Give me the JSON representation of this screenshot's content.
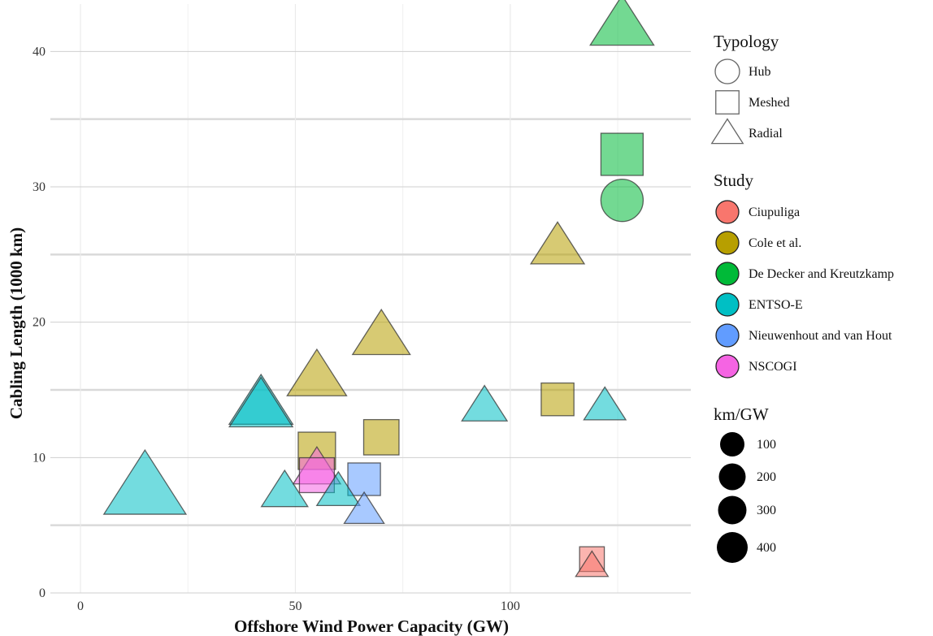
{
  "chart_data": {
    "type": "scatter",
    "xlabel": "Offshore Wind Power Capacity (GW)",
    "ylabel": "Cabling Length (1000 km)",
    "xlim": [
      -7,
      142
    ],
    "ylim": [
      0,
      43.5
    ],
    "x_ticks": [
      "0",
      "50",
      "100"
    ],
    "x_tick_values": [
      0,
      50,
      100
    ],
    "y_ticks": [
      "0",
      "10",
      "20",
      "30",
      "40"
    ],
    "y_tick_values": [
      0,
      10,
      20,
      30,
      40
    ],
    "grid": true,
    "legend_position": "right",
    "point_opacity": 0.55,
    "shape_legend": {
      "title": "Typology",
      "items": [
        {
          "label": "Hub",
          "shape": "circle"
        },
        {
          "label": "Meshed",
          "shape": "square"
        },
        {
          "label": "Radial",
          "shape": "triangle"
        }
      ]
    },
    "color_legend": {
      "title": "Study",
      "items": [
        {
          "label": "Ciupuliga",
          "color": "#f8766d"
        },
        {
          "label": "Cole et al.",
          "color": "#b79f00"
        },
        {
          "label": "De Decker and Kreutzkamp",
          "color": "#00ba38"
        },
        {
          "label": "ENTSO-E",
          "color": "#00bfc4"
        },
        {
          "label": "Nieuwenhout and van Hout",
          "color": "#619cff"
        },
        {
          "label": "NSCOGI",
          "color": "#f564e3"
        }
      ]
    },
    "size_legend": {
      "title": "km/GW",
      "items": [
        {
          "label": "100",
          "value": 100
        },
        {
          "label": "200",
          "value": 200
        },
        {
          "label": "300",
          "value": 300
        },
        {
          "label": "400",
          "value": 400
        }
      ]
    },
    "points": [
      {
        "study": "De Decker and Kreutzkamp",
        "typology": "Radial",
        "x": 126,
        "y": 42,
        "kmgw": 333
      },
      {
        "study": "De Decker and Kreutzkamp",
        "typology": "Meshed",
        "x": 126,
        "y": 32.4,
        "kmgw": 257
      },
      {
        "study": "De Decker and Kreutzkamp",
        "typology": "Hub",
        "x": 126,
        "y": 29,
        "kmgw": 230
      },
      {
        "study": "Cole et al.",
        "typology": "Radial",
        "x": 111,
        "y": 25.6,
        "kmgw": 230
      },
      {
        "study": "Cole et al.",
        "typology": "Radial",
        "x": 70,
        "y": 19,
        "kmgw": 271
      },
      {
        "study": "Cole et al.",
        "typology": "Radial",
        "x": 55,
        "y": 16,
        "kmgw": 290
      },
      {
        "study": "Cole et al.",
        "typology": "Meshed",
        "x": 111,
        "y": 14.3,
        "kmgw": 129
      },
      {
        "study": "Cole et al.",
        "typology": "Meshed",
        "x": 70,
        "y": 11.5,
        "kmgw": 164
      },
      {
        "study": "Cole et al.",
        "typology": "Meshed",
        "x": 55,
        "y": 10.5,
        "kmgw": 191
      },
      {
        "study": "ENTSO-E",
        "typology": "Radial",
        "x": 42,
        "y": 14,
        "kmgw": 333
      },
      {
        "study": "ENTSO-E",
        "typology": "Radial",
        "x": 42,
        "y": 13.8,
        "kmgw": 329
      },
      {
        "study": "ENTSO-E",
        "typology": "Radial",
        "x": 94,
        "y": 13.8,
        "kmgw": 147
      },
      {
        "study": "ENTSO-E",
        "typology": "Radial",
        "x": 122,
        "y": 13.8,
        "kmgw": 113
      },
      {
        "study": "ENTSO-E",
        "typology": "Radial",
        "x": 15,
        "y": 7.8,
        "kmgw": 520
      },
      {
        "study": "ENTSO-E",
        "typology": "Radial",
        "x": 47.5,
        "y": 7.5,
        "kmgw": 158
      },
      {
        "study": "ENTSO-E",
        "typology": "Radial",
        "x": 60,
        "y": 7.5,
        "kmgw": 125
      },
      {
        "study": "NSCOGI",
        "typology": "Meshed",
        "x": 55,
        "y": 8.7,
        "kmgw": 158
      },
      {
        "study": "NSCOGI",
        "typology": "Radial",
        "x": 55,
        "y": 9.2,
        "kmgw": 167
      },
      {
        "study": "Nieuwenhout and van Hout",
        "typology": "Meshed",
        "x": 66,
        "y": 8.4,
        "kmgw": 127
      },
      {
        "study": "Nieuwenhout and van Hout",
        "typology": "Radial",
        "x": 66,
        "y": 6.1,
        "kmgw": 92
      },
      {
        "study": "Ciupuliga",
        "typology": "Meshed",
        "x": 119,
        "y": 2.5,
        "kmgw": 21
      },
      {
        "study": "Ciupuliga",
        "typology": "Radial",
        "x": 119,
        "y": 2,
        "kmgw": 17
      }
    ]
  }
}
